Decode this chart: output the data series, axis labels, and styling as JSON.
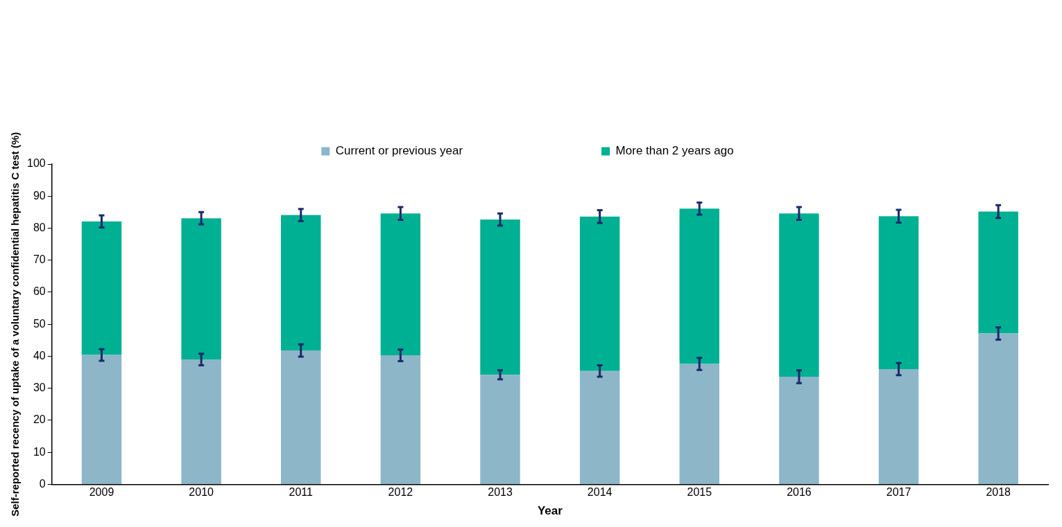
{
  "chart_data": {
    "type": "bar",
    "xlabel": "Year",
    "ylabel": "Self-reported recency of uptake of a voluntary confidential hepatitis C test (%)",
    "categories": [
      "2009",
      "2010",
      "2011",
      "2012",
      "2013",
      "2014",
      "2015",
      "2016",
      "2017",
      "2018"
    ],
    "series": [
      {
        "name": "Current or previous year",
        "color": "#8db6c9",
        "values": [
          40.4,
          39.0,
          41.8,
          40.3,
          34.2,
          35.4,
          37.6,
          33.6,
          36.0,
          47.1
        ],
        "errors": [
          1.8,
          1.8,
          1.9,
          1.8,
          1.4,
          1.8,
          1.9,
          2.0,
          1.9,
          1.9
        ]
      },
      {
        "name": "More than 2 years ago",
        "color": "#00b092",
        "values": [
          41.7,
          44.1,
          42.3,
          44.3,
          48.5,
          48.2,
          48.5,
          51.0,
          47.7,
          38.1
        ],
        "errors": [
          1.9,
          1.9,
          1.9,
          2.0,
          1.9,
          2.0,
          1.9,
          2.0,
          2.0,
          2.0
        ]
      }
    ],
    "stacked": true,
    "ylim": [
      0,
      100
    ],
    "yticks": [
      0,
      10,
      20,
      30,
      40,
      50,
      60,
      70,
      80,
      90,
      100
    ],
    "grid": false,
    "legend": "top"
  }
}
